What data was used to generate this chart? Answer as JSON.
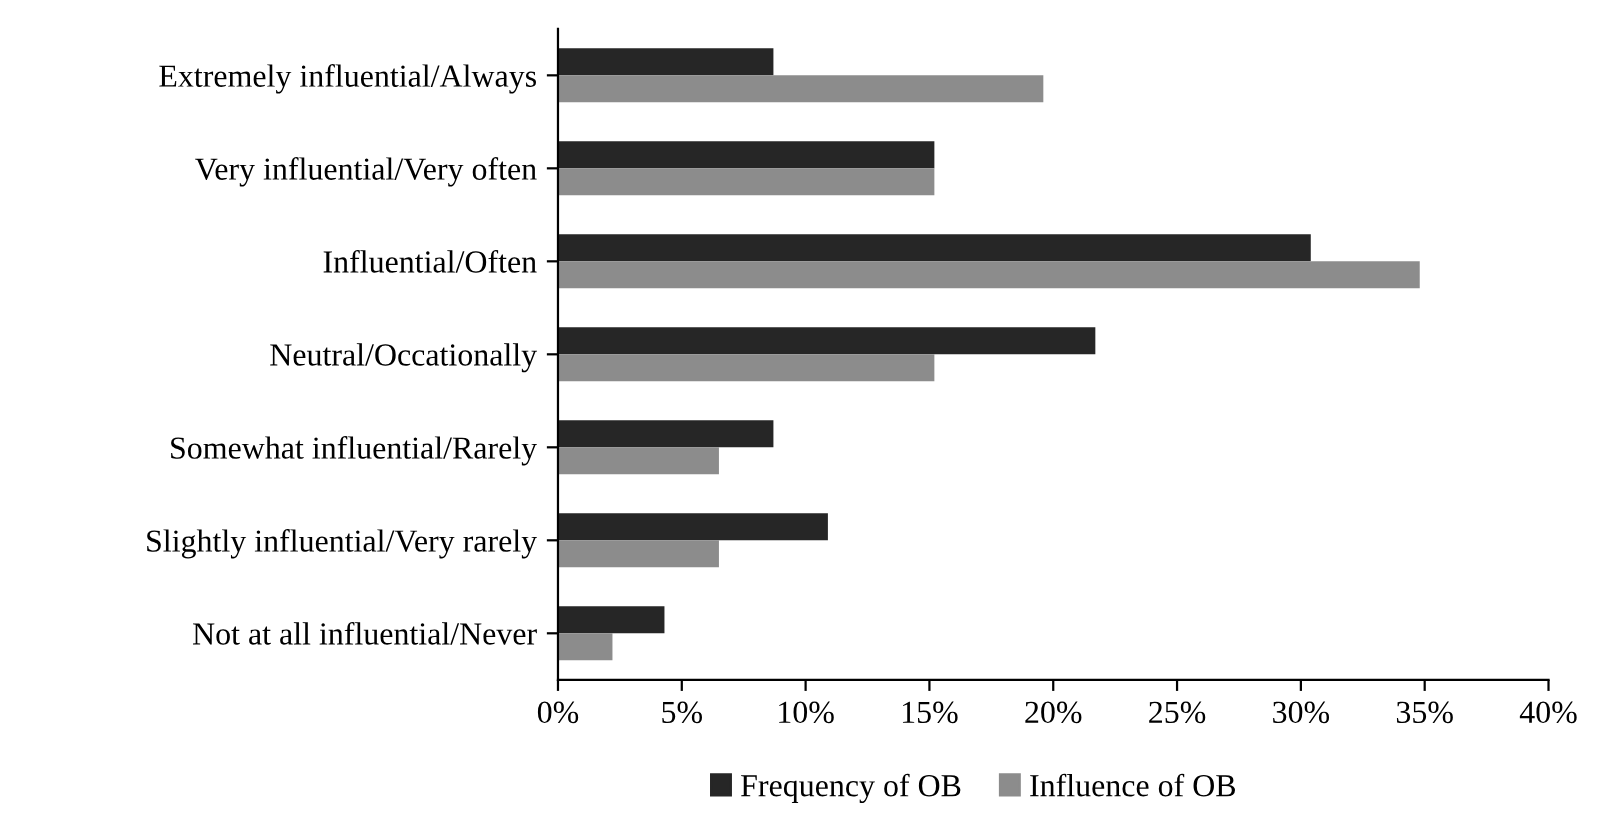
{
  "chart_data": {
    "type": "bar",
    "orientation": "horizontal",
    "categories": [
      "Extremely influential/Always",
      "Very influential/Very often",
      "Influential/Often",
      "Neutral/Occationally",
      "Somewhat influential/Rarely",
      "Slightly influential/Very rarely",
      "Not at all influential/Never"
    ],
    "series": [
      {
        "name": "Frequency of OB",
        "color": "#262626",
        "values": [
          8.7,
          15.2,
          30.4,
          21.7,
          8.7,
          10.9,
          4.3
        ]
      },
      {
        "name": "Influence of OB",
        "color": "#8c8c8c",
        "values": [
          19.6,
          15.2,
          34.8,
          15.2,
          6.5,
          6.5,
          2.2
        ]
      }
    ],
    "xlim": [
      0,
      40
    ],
    "xticks": [
      {
        "value": 0,
        "label": "0%"
      },
      {
        "value": 5,
        "label": "5%"
      },
      {
        "value": 10,
        "label": "10%"
      },
      {
        "value": 15,
        "label": "15%"
      },
      {
        "value": 20,
        "label": "20%"
      },
      {
        "value": 25,
        "label": "25%"
      },
      {
        "value": 30,
        "label": "30%"
      },
      {
        "value": 35,
        "label": "35%"
      },
      {
        "value": 40,
        "label": "40%"
      }
    ],
    "grid": false,
    "legend": "bottom"
  }
}
